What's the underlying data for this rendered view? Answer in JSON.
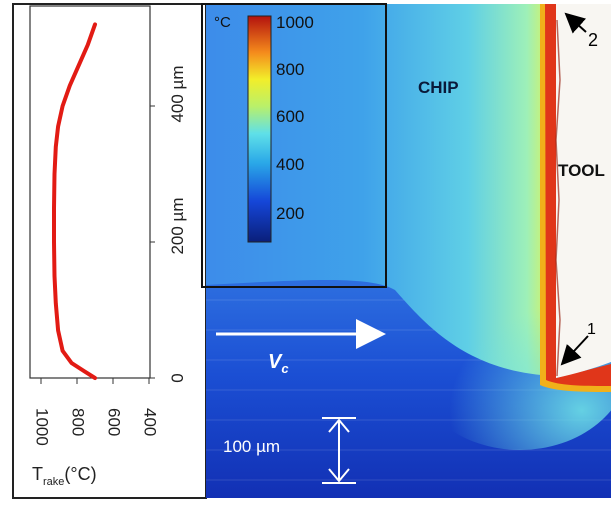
{
  "profile_plot": {
    "x_tick_labels": [
      "1000",
      "800",
      "600",
      "400"
    ],
    "x_axis_label_main": "T",
    "x_axis_label_sub": "rake",
    "x_axis_label_unit": "(°C)",
    "y_tick_labels": [
      "0",
      "200 µm",
      "400 µm"
    ],
    "curve_color": "#e21b14"
  },
  "thermal_map": {
    "colorbar_unit": "°C",
    "colorbar_ticks": [
      "1000",
      "800",
      "600",
      "400",
      "200"
    ],
    "chip_label": "CHIP",
    "tool_label": "TOOL",
    "marker_1": "1",
    "marker_2": "2",
    "velocity_label": "V",
    "velocity_sub": "c",
    "scale_bar_label": "100 µm"
  },
  "chart_data": {
    "type": "line",
    "xlabel": "Trake(°C)",
    "ylabel": "",
    "xlim": [
      1000,
      400
    ],
    "ylim": [
      0,
      500
    ],
    "series": [
      {
        "x": [
          700,
          760,
          830,
          880,
          905,
          918,
          925,
          928,
          928,
          925,
          918,
          905,
          880,
          840,
          790,
          740,
          700
        ],
        "y": [
          0,
          10,
          22,
          40,
          70,
          110,
          150,
          200,
          250,
          300,
          340,
          370,
          400,
          430,
          460,
          490,
          520
        ]
      }
    ]
  }
}
